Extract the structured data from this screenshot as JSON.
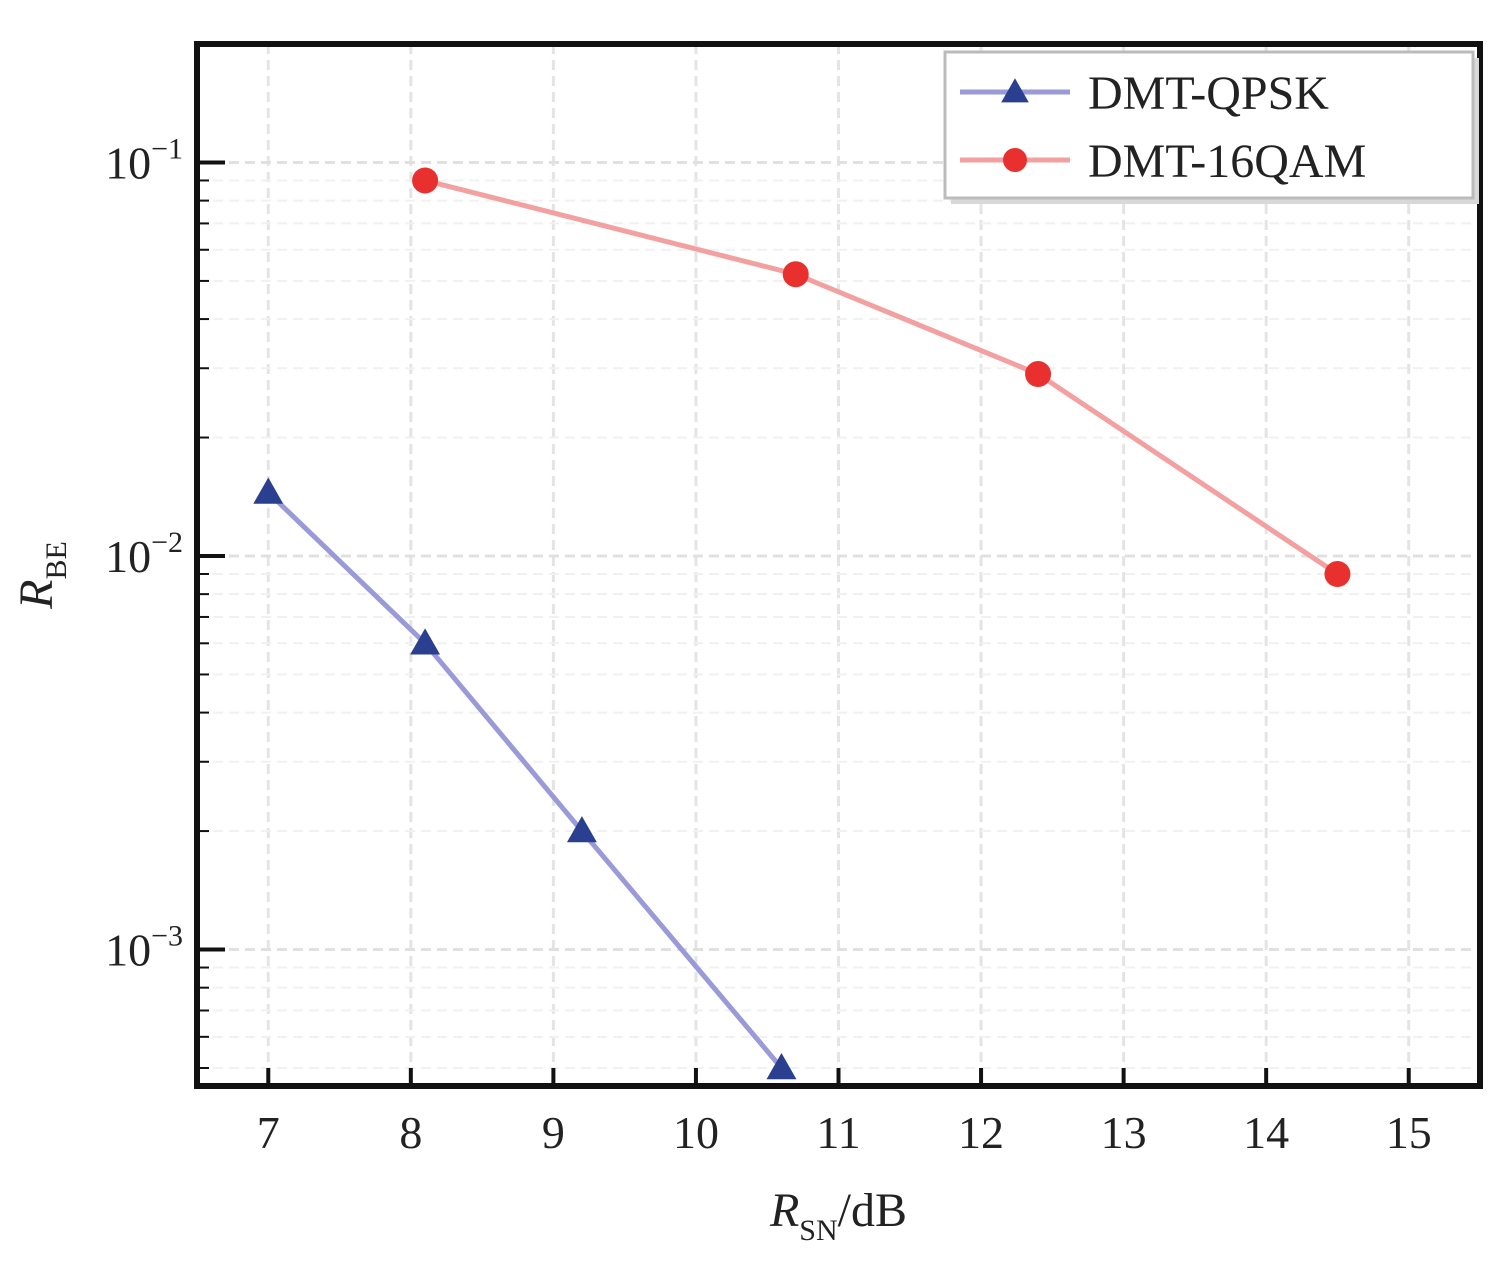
{
  "chart_data": {
    "type": "line",
    "xlabel": {
      "main": "R",
      "sub": "SN",
      "suffix": "/dB"
    },
    "ylabel": {
      "main": "R",
      "sub": "BE"
    },
    "yscale": "log",
    "xlim": [
      6.5,
      15.5
    ],
    "ylim": [
      0.00045,
      0.2
    ],
    "x_ticks": [
      7,
      8,
      9,
      10,
      11,
      12,
      13,
      14,
      15
    ],
    "y_ticks": [
      {
        "value": 0.1,
        "base": "10",
        "exp": "−1"
      },
      {
        "value": 0.01,
        "base": "10",
        "exp": "−2"
      },
      {
        "value": 0.001,
        "base": "10",
        "exp": "−3"
      }
    ],
    "grid": true,
    "legend_position": "top-right",
    "series": [
      {
        "name": "DMT-QPSK",
        "color": "#2a3f8f",
        "line_color": "#9a9ad8",
        "marker": "triangle",
        "x": [
          7.0,
          8.1,
          9.2,
          10.6
        ],
        "y": [
          0.0145,
          0.006,
          0.002,
          0.0005
        ]
      },
      {
        "name": "DMT-16QAM",
        "color": "#e8312e",
        "line_color": "#f2a0a0",
        "marker": "circle",
        "x": [
          8.1,
          10.7,
          12.4,
          14.5
        ],
        "y": [
          0.09,
          0.052,
          0.029,
          0.009
        ]
      }
    ]
  }
}
